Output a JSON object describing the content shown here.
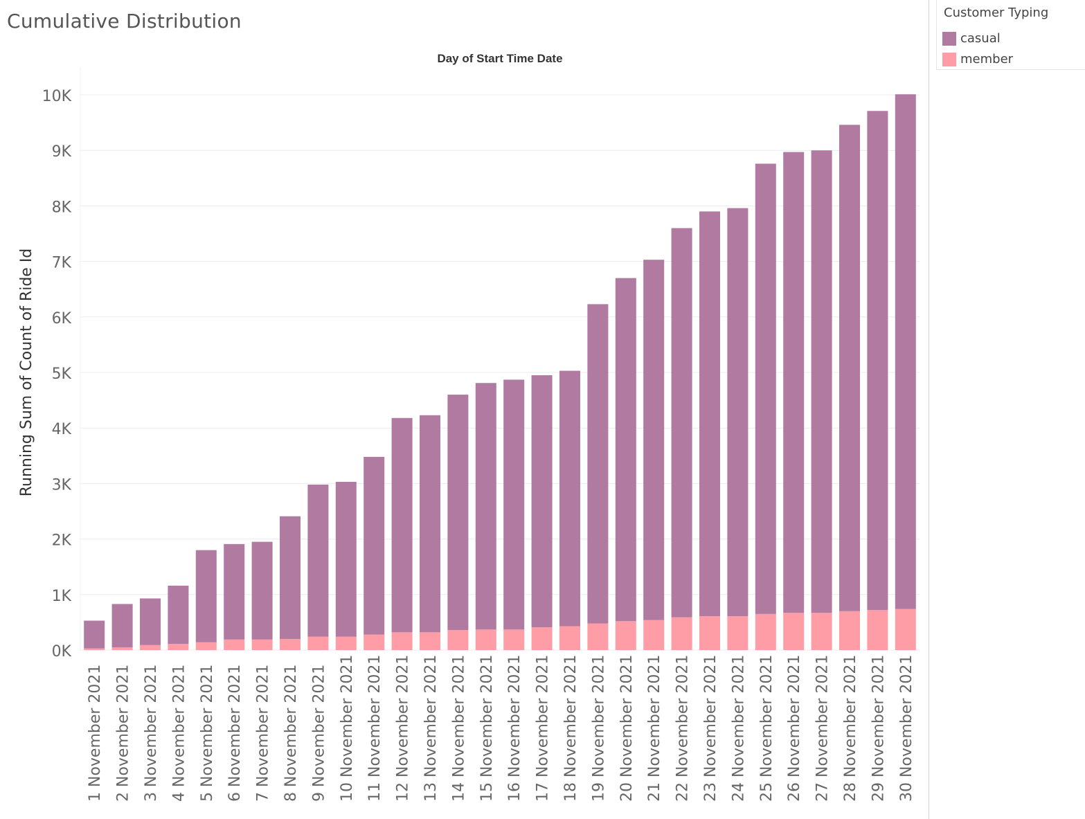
{
  "sheet": {
    "title": "Cumulative Distribution"
  },
  "legend": {
    "title": "Customer Typing",
    "items": [
      {
        "label": "casual",
        "color": "#b07aa1"
      },
      {
        "label": "member",
        "color": "#ff9da7"
      }
    ]
  },
  "chart_data": {
    "type": "bar",
    "stacked": true,
    "title": "Day of Start Time Date",
    "xlabel": "",
    "ylabel": "Running Sum of Count of Ride Id",
    "ylim": [
      0,
      10000
    ],
    "yticks": [
      {
        "value": 0,
        "label": "0K"
      },
      {
        "value": 1000,
        "label": "1K"
      },
      {
        "value": 2000,
        "label": "2K"
      },
      {
        "value": 3000,
        "label": "3K"
      },
      {
        "value": 4000,
        "label": "4K"
      },
      {
        "value": 5000,
        "label": "5K"
      },
      {
        "value": 6000,
        "label": "6K"
      },
      {
        "value": 7000,
        "label": "7K"
      },
      {
        "value": 8000,
        "label": "8K"
      },
      {
        "value": 9000,
        "label": "9K"
      },
      {
        "value": 10000,
        "label": "10K"
      }
    ],
    "grid": true,
    "legend_position": "top-right",
    "categories": [
      "1 November 2021",
      "2 November 2021",
      "3 November 2021",
      "4 November 2021",
      "5 November 2021",
      "6 November 2021",
      "7 November 2021",
      "8 November 2021",
      "9 November 2021",
      "10 November 2021",
      "11 November 2021",
      "12 November 2021",
      "13 November 2021",
      "14 November 2021",
      "15 November 2021",
      "16 November 2021",
      "17 November 2021",
      "18 November 2021",
      "19 November 2021",
      "20 November 2021",
      "21 November 2021",
      "22 November 2021",
      "23 November 2021",
      "24 November 2021",
      "25 November 2021",
      "26 November 2021",
      "27 November 2021",
      "28 November 2021",
      "29 November 2021",
      "30 November 2021"
    ],
    "series": [
      {
        "name": "member",
        "color": "#ff9da7",
        "values": [
          30,
          50,
          90,
          110,
          140,
          190,
          190,
          200,
          240,
          240,
          280,
          320,
          320,
          360,
          370,
          370,
          410,
          430,
          480,
          520,
          540,
          590,
          610,
          610,
          650,
          670,
          670,
          700,
          720,
          740
        ]
      },
      {
        "name": "casual",
        "color": "#b07aa1",
        "values": [
          500,
          780,
          840,
          1050,
          1660,
          1720,
          1760,
          2210,
          2740,
          2790,
          3200,
          3860,
          3910,
          4240,
          4440,
          4500,
          4540,
          4600,
          5750,
          6180,
          6490,
          7010,
          7290,
          7350,
          8110,
          8300,
          8330,
          8760,
          8990,
          9270
        ]
      }
    ]
  }
}
